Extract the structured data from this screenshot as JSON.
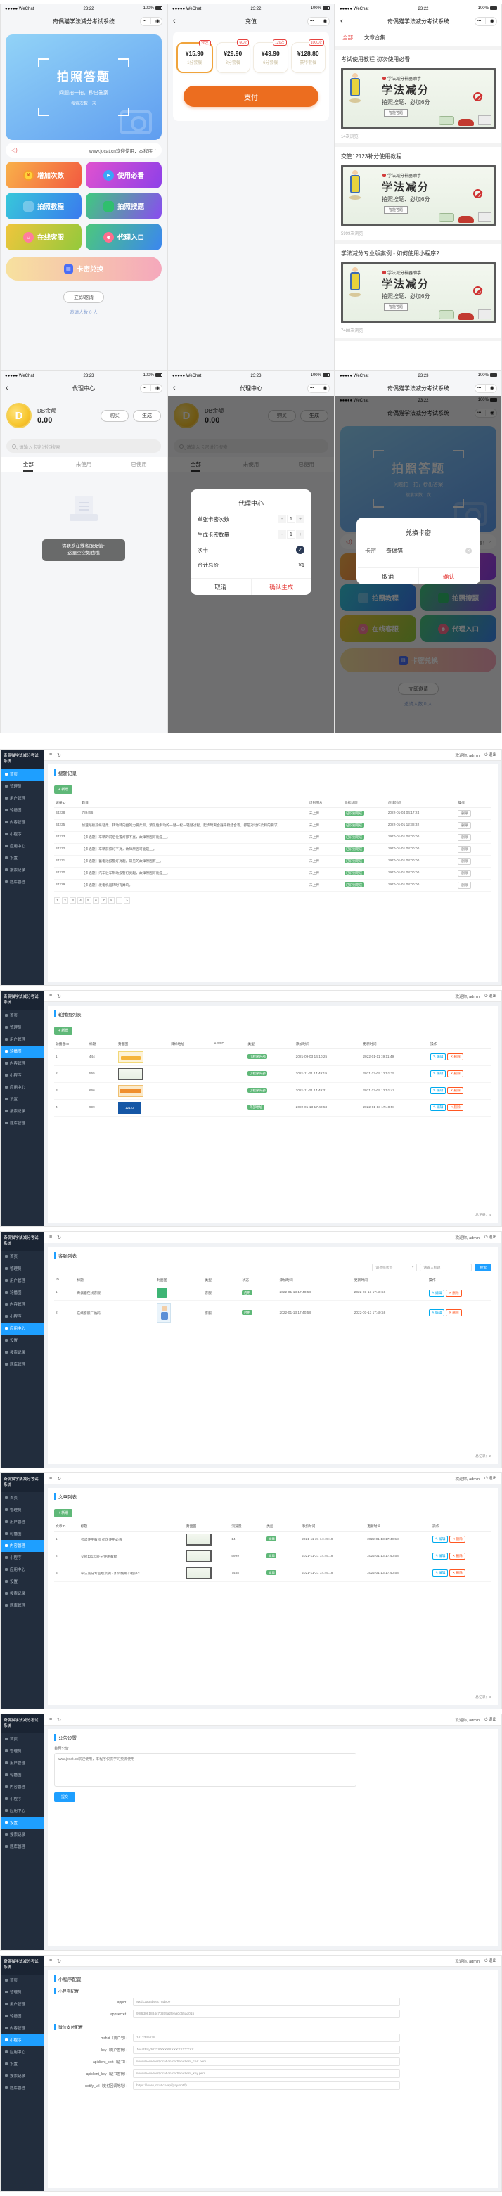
{
  "colors": {
    "accent_blue": "#1E9FFF",
    "green": "#5FB878",
    "red_outline": "#FF5722",
    "teal_outline": "#01AAED",
    "pay_orange": "#ec6d1f",
    "wechat_red": "#e64340"
  },
  "status": {
    "carrier": "●●●●● WeChat",
    "time_row1": "23:22",
    "time_row2": "23:23",
    "battery": "100%"
  },
  "capsule": {
    "dots": "•••",
    "target": "◉"
  },
  "home": {
    "nav_title": "奇偶猫学法减分考试系统",
    "hero_title": "拍照答题",
    "hero_sub": "问题拍一拍，秒出答案",
    "hero_count": "搜索次数：次",
    "notice": "www.jocat.cn欢迎使用，本程序",
    "notice2": "考试答题！",
    "chevron": "›",
    "buttons": [
      {
        "label": "增加次数",
        "variant": "orange",
        "icon": "coin-icon",
        "glyph": "¥"
      },
      {
        "label": "使用必看",
        "variant": "magenta",
        "icon": "play-icon",
        "glyph": "▶"
      },
      {
        "label": "拍照教程",
        "variant": "teal",
        "icon": "car-icon",
        "glyph": ""
      },
      {
        "label": "拍照搜题",
        "variant": "greenpurple",
        "icon": "camera-icon",
        "glyph": ""
      },
      {
        "label": "在线客服",
        "variant": "yellowgreen",
        "icon": "service-icon",
        "glyph": "☺"
      },
      {
        "label": "代理入口",
        "variant": "greenblue",
        "icon": "person-icon",
        "glyph": "☻"
      }
    ],
    "redeem_label": "卡密兑换",
    "invite_button": "立即邀请",
    "invite_count": "邀请人数 0 人"
  },
  "recharge": {
    "nav_title": "充值",
    "plans": [
      {
        "badge": "20次",
        "price": "¥15.90",
        "name": "1分套餐",
        "selected": "true"
      },
      {
        "badge": "60次",
        "price": "¥29.90",
        "name": "3分套餐",
        "selected": "false"
      },
      {
        "badge": "120次",
        "price": "¥49.90",
        "name": "6分套餐",
        "selected": "false"
      },
      {
        "badge": "1000次",
        "price": "¥128.80",
        "name": "豪华套餐",
        "selected": "false"
      }
    ],
    "pay_label": "支付"
  },
  "articles": {
    "nav_title": "奇偶猫学法减分考试系统",
    "tab_all": "全部",
    "tab_collection": "文章合集",
    "banner": {
      "tag": "学法减分神器助手",
      "title": "学法减分",
      "sub": "拍照搜题、必加6分",
      "button": "智能答题"
    },
    "items": [
      {
        "title": "考试使用教程 初次使用必看",
        "views": "14次浏览"
      },
      {
        "title": "交管12123补分使用教程",
        "views": "5999次浏览"
      },
      {
        "title": "学法减分专业版案例 - 如何使用小程序?",
        "views": "7488次浏览"
      }
    ]
  },
  "agent": {
    "nav_title": "代理中心",
    "coin_letter": "D",
    "balance_label": "DB余额",
    "balance_value": "0.00",
    "buy_label": "购买",
    "generate_label": "生成",
    "search_placeholder": "请输入卡密进行搜索",
    "tabs": [
      "全部",
      "未使用",
      "已使用"
    ],
    "toast_line1": "请联系在线客服充值~",
    "toast_line2": "这里空空如也哦"
  },
  "agent_modal": {
    "title": "代理中心",
    "row1_label": "单张卡密次数",
    "row1_value": "1",
    "row2_label": "生成卡密数量",
    "row2_value": "1",
    "minus": "-",
    "plus": "+",
    "check_label": "次卡",
    "check_mark": "✓",
    "total_label": "合计总价",
    "total_value": "¥1",
    "cancel": "取消",
    "confirm": "确认生成"
  },
  "redeem_dialog": {
    "title": "兑换卡密",
    "field_label": "卡密",
    "field_value": "奇偶猫",
    "cancel": "取消",
    "confirm": "确认"
  },
  "admin": {
    "logo": "奇偶猫学法减分考试系统",
    "menu": [
      "首页",
      "管理员",
      "用户管理",
      "轮播图",
      "内容管理",
      "小程序",
      "应用中心",
      "设置",
      "搜索记录",
      "题库管理"
    ],
    "topbar": {
      "welcome": "欢迎你, admin",
      "logout": "退出",
      "logout_icon": "⏻"
    },
    "screens": {
      "s1": {
        "active": 0,
        "heading": "搜题记录",
        "add_button": "+ 新增",
        "columns": [
          "记录ID",
          "题目",
          "识别图片",
          "目标状态",
          "创建时间",
          "操作"
        ],
        "rows": [
          [
            "34238",
            "789456",
            "未上传",
            "已识别完成",
            "2022-01-04 04:17:24"
          ],
          [
            "34235",
            "加速踏板操纵轻柔、转动转向盘的力要柔和，预见性制动的一踏一松一轻踏过程，起步时离合器平稳结合等，都是对动作柔和的要求。",
            "未上传",
            "已识别完成",
            "2022-01-01 12:38:32"
          ],
          [
            "34233",
            "【多选题】车辆的前后位置灯都不亮，故障原因可能是__。",
            "未上传",
            "已识别完成",
            "1970-01-01 08:00:00"
          ],
          [
            "34232",
            "【多选题】车辆前照灯不亮，故障原因可能是__。",
            "未上传",
            "已识别完成",
            "1970-01-01 08:00:00"
          ],
          [
            "34231",
            "【多选题】蓄电池报警灯亮起，常见的故障原因有__。",
            "未上传",
            "已识别完成",
            "1970-01-01 08:00:00"
          ],
          [
            "34230",
            "【多选题】汽车驻车制动报警灯亮起，故障原因可能是__。",
            "未上传",
            "已识别完成",
            "1970-01-01 08:00:00"
          ],
          [
            "34229",
            "【多选题】发电机运转时有异响。",
            "未上传",
            "已识别完成",
            "1970-01-01 08:00:00"
          ]
        ],
        "delete_button": "删除",
        "pager": [
          "1",
          "2",
          "3",
          "4",
          "5",
          "6",
          "7",
          "8",
          "…",
          "»"
        ]
      },
      "s2": {
        "active": 3,
        "heading": "轮播图列表",
        "add_button": "+ 新增",
        "columns": [
          "轮播图ID",
          "标题",
          "封面图",
          "目标地址",
          "APPID",
          "类型",
          "添加时间",
          "更新时间",
          "操作"
        ],
        "rows": [
          {
            "id": "1",
            "title": "444",
            "thumb": "banner-yellow",
            "url": "",
            "appid": "",
            "type": "小程序内部",
            "added": "2021-09-03 14:10:25",
            "updated": "2022-01-11 19:11:49"
          },
          {
            "id": "2",
            "title": "555",
            "thumb": "banner-police",
            "url": "",
            "appid": "",
            "type": "小程序内部",
            "added": "2021-11-21 14:49:19",
            "updated": "2021-12-09 12:51:25"
          },
          {
            "id": "3",
            "title": "666",
            "thumb": "banner-orange",
            "url": "",
            "appid": "",
            "type": "小程序内部",
            "added": "2021-11-21 14:49:31",
            "updated": "2021-12-09 12:51:47"
          },
          {
            "id": "4",
            "title": "999",
            "thumb": "banner-12123",
            "thumb_text": "12123",
            "url": "",
            "appid": "",
            "type": "外部地址",
            "added": "2022-01-13 17:40:58",
            "updated": "2022-01-13 17:40:58"
          }
        ],
        "edit_button": "✎ 编辑",
        "delete_button": "✕ 删除",
        "total": "总记录：4"
      },
      "s3": {
        "active": 6,
        "heading": "客服列表",
        "filter": {
          "select": "请选择状态",
          "input_placeholder": "请输入标题",
          "button": "搜索"
        },
        "columns": [
          "ID",
          "标题",
          "封面图",
          "类型",
          "状态",
          "添加时间",
          "更新时间",
          "操作"
        ],
        "rows": [
          {
            "id": "1",
            "title": "奇偶猫在线客服",
            "thumb": "logo-green",
            "type": "客服",
            "status": "启用",
            "added": "2022-01-13 17:40:58",
            "updated": "2022-01-13 17:40:58"
          },
          {
            "id": "2",
            "title": "在线客服二维码",
            "thumb": "cartoon-boy",
            "type": "客服",
            "status": "启用",
            "added": "2022-01-13 17:40:58",
            "updated": "2022-01-13 17:40:58"
          }
        ],
        "edit_button": "✎ 编辑",
        "delete_button": "✕ 删除",
        "total": "总记录：2"
      },
      "s4": {
        "active": 4,
        "heading": "文章列表",
        "add_button": "+ 新增",
        "columns": [
          "文章ID",
          "标题",
          "封面图",
          "浏览量",
          "类型",
          "添加时间",
          "更新时间",
          "操作"
        ],
        "rows": [
          {
            "id": "1",
            "title": "考试使用教程 初次使用必看",
            "thumb": "banner-police",
            "views": "14",
            "type": "文章",
            "added": "2021-11-21 14:49:19",
            "updated": "2022-01-13 17:40:58"
          },
          {
            "id": "2",
            "title": "交管12123补分使用教程",
            "thumb": "banner-police",
            "views": "5999",
            "type": "文章",
            "added": "2021-11-21 14:49:19",
            "updated": "2022-01-13 17:40:58"
          },
          {
            "id": "3",
            "title": "学法减分专业版案例 - 如何使用小程序?",
            "thumb": "banner-police",
            "views": "7488",
            "type": "文章",
            "added": "2021-11-21 14:49:19",
            "updated": "2022-01-13 17:40:58"
          }
        ],
        "edit_button": "✎ 编辑",
        "delete_button": "✕ 删除",
        "total": "总记录：3"
      },
      "s5": {
        "active": 7,
        "heading": "公告设置",
        "field_label": "首页公告",
        "field_value": "www.jocat.cn欢迎使用，本程序仅供学习交流使用",
        "submit": "提交"
      },
      "s6": {
        "active": 5,
        "heading": "小程序配置",
        "sections": [
          {
            "title": "小程序配置",
            "fields": [
              {
                "label": "appid",
                "value": "wxd12a34b56c78d90e"
              },
              {
                "label": "appsecret",
                "value": "9f86d081884c7d659a2feaa0c55ad015"
              }
            ]
          },
          {
            "title": "微信支付配置",
            "fields": [
              {
                "label": "mchid（商户号）",
                "value": "1612345678"
              },
              {
                "label": "key（商户密钥）",
                "value": "JocatPay2022XXXXXXXXXXXXXXXX"
              },
              {
                "label": "apiclient_cert（证书）",
                "value": "/www/wwwroot/jocat.cn/cert/apiclient_cert.pem"
              },
              {
                "label": "apiclient_key（证书密钥）",
                "value": "/www/wwwroot/jocat.cn/cert/apiclient_key.pem"
              },
              {
                "label": "notify_url（支付回调地址）",
                "value": "https://www.jocat.cn/api/pay/notify"
              }
            ]
          }
        ]
      }
    }
  }
}
